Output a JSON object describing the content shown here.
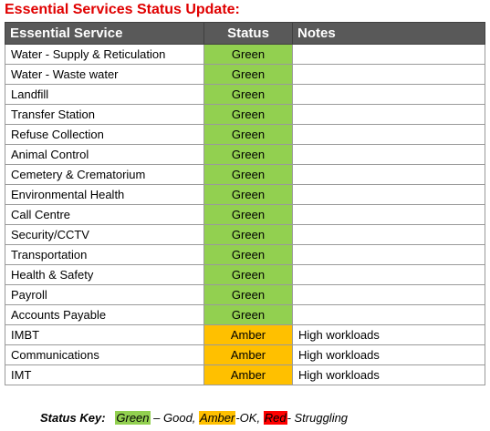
{
  "title": "Essential Services Status Update:",
  "table": {
    "headers": {
      "service": "Essential Service",
      "status": "Status",
      "notes": "Notes"
    },
    "rows": [
      {
        "service": "Water - Supply & Reticulation",
        "status": "Green",
        "notes": ""
      },
      {
        "service": "Water - Waste water",
        "status": "Green",
        "notes": ""
      },
      {
        "service": "Landfill",
        "status": "Green",
        "notes": ""
      },
      {
        "service": "Transfer Station",
        "status": "Green",
        "notes": ""
      },
      {
        "service": "Refuse Collection",
        "status": "Green",
        "notes": ""
      },
      {
        "service": "Animal Control",
        "status": "Green",
        "notes": ""
      },
      {
        "service": "Cemetery & Crematorium",
        "status": "Green",
        "notes": ""
      },
      {
        "service": "Environmental Health",
        "status": "Green",
        "notes": ""
      },
      {
        "service": "Call Centre",
        "status": "Green",
        "notes": ""
      },
      {
        "service": "Security/CCTV",
        "status": "Green",
        "notes": ""
      },
      {
        "service": "Transportation",
        "status": "Green",
        "notes": ""
      },
      {
        "service": "Health & Safety",
        "status": "Green",
        "notes": ""
      },
      {
        "service": "Payroll",
        "status": "Green",
        "notes": ""
      },
      {
        "service": "Accounts Payable",
        "status": "Green",
        "notes": ""
      },
      {
        "service": "IMBT",
        "status": "Amber",
        "notes": "High workloads"
      },
      {
        "service": "Communications",
        "status": "Amber",
        "notes": "High workloads"
      },
      {
        "service": "IMT",
        "status": "Amber",
        "notes": "High workloads"
      }
    ]
  },
  "status_key": {
    "label": "Status Key:",
    "green": "Green",
    "green_desc": "– Good,",
    "amber": "Amber",
    "amber_desc": "-OK,",
    "red": "Red",
    "red_desc": "- Struggling"
  },
  "colors": {
    "title": "#e00000",
    "header_bg": "#595959",
    "header_text": "#ffffff",
    "green": "#92d050",
    "amber": "#ffc000",
    "red": "#ff0000",
    "notes_text": "#e00000"
  }
}
